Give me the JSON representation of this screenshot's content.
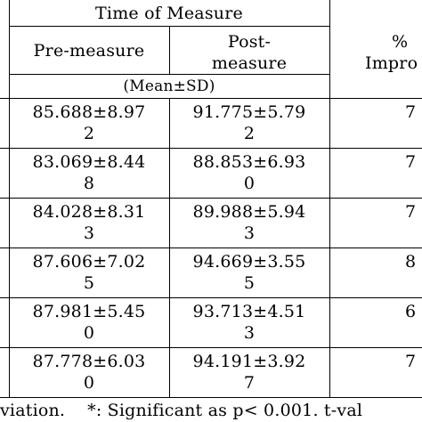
{
  "table": {
    "group_header": "Time of Measure",
    "col_pre": "Pre-measure",
    "col_post_line1": "Post-",
    "col_post_line2": "measure",
    "col_imp_line1": "%",
    "col_imp_line2": "Impro",
    "stat_label": "(Mean±SD)",
    "rows": [
      {
        "pre": "85.688±8.97\n2",
        "post": "91.775±5.79\n2",
        "imp": "7"
      },
      {
        "pre": "83.069±8.44\n8",
        "post": "88.853±6.93\n0",
        "imp": "7"
      },
      {
        "pre": "84.028±8.31\n3",
        "post": "89.988±5.94\n3",
        "imp": "7"
      },
      {
        "pre": "87.606±7.02\n5",
        "post": "94.669±3.55\n5",
        "imp": "8"
      },
      {
        "pre": "87.981±5.45\n0",
        "post": "93.713±4.51\n3",
        "imp": "6"
      },
      {
        "pre": "87.778±6.03\n0",
        "post": "94.191±3.92\n7",
        "imp": "7"
      }
    ]
  },
  "footnote": "viation.    *: Significant as p< 0.001. t-val"
}
